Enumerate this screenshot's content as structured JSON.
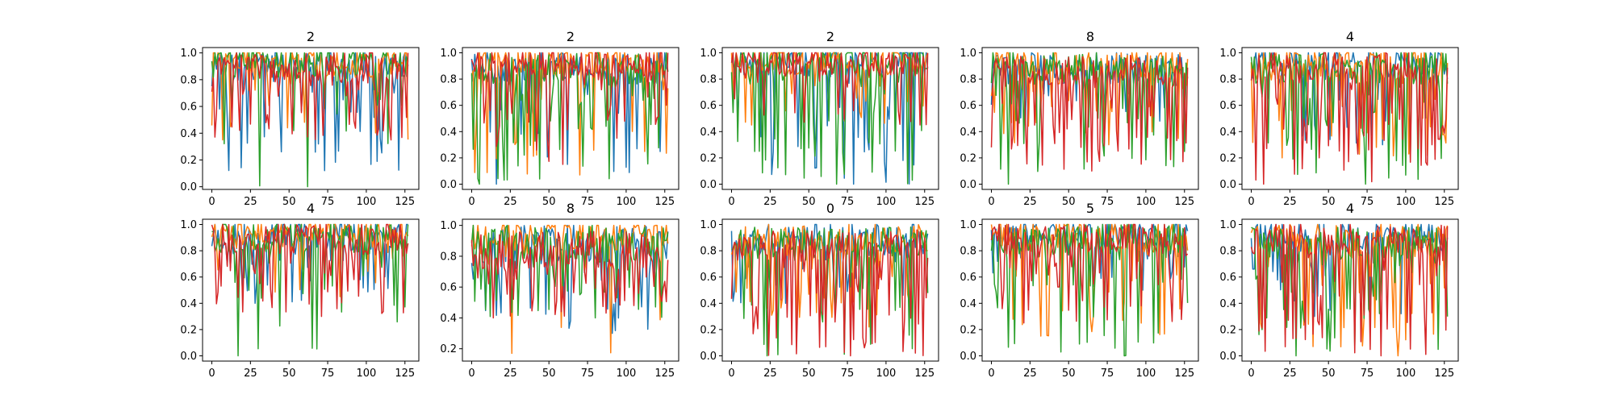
{
  "colors": [
    "#1f77b4",
    "#ff7f0e",
    "#2ca02c",
    "#d62728"
  ],
  "chart_data": [
    {
      "type": "line",
      "title": "2",
      "xlim": [
        -6,
        134
      ],
      "ylim": [
        -0.02,
        1.04
      ],
      "xticks": [
        0,
        25,
        50,
        75,
        100,
        125
      ],
      "yticks": [
        0.0,
        0.2,
        0.4,
        0.6,
        0.8,
        1.0
      ],
      "series": [
        {
          "mean": 0.87,
          "min": 0.12,
          "spread": 0.45,
          "drop": 0.2,
          "seed": 11
        },
        {
          "mean": 0.9,
          "min": 0.35,
          "spread": 0.45,
          "drop": 0.12,
          "seed": 12
        },
        {
          "mean": 0.9,
          "min": 0.0,
          "spread": 0.5,
          "drop": 0.12,
          "seed": 13
        },
        {
          "mean": 0.86,
          "min": 0.35,
          "spread": 0.5,
          "drop": 0.25,
          "seed": 14
        }
      ]
    },
    {
      "type": "line",
      "title": "2",
      "xlim": [
        -6,
        134
      ],
      "ylim": [
        -0.04,
        1.04
      ],
      "xticks": [
        0,
        25,
        50,
        75,
        100,
        125
      ],
      "yticks": [
        0.0,
        0.2,
        0.4,
        0.6,
        0.8,
        1.0
      ],
      "series": [
        {
          "mean": 0.85,
          "min": 0.0,
          "spread": 0.5,
          "drop": 0.18,
          "seed": 21
        },
        {
          "mean": 0.9,
          "min": 0.07,
          "spread": 0.5,
          "drop": 0.15,
          "seed": 22
        },
        {
          "mean": 0.85,
          "min": 0.0,
          "spread": 0.9,
          "drop": 0.3,
          "seed": 23
        },
        {
          "mean": 0.88,
          "min": 0.15,
          "spread": 0.55,
          "drop": 0.25,
          "seed": 24
        }
      ]
    },
    {
      "type": "line",
      "title": "2",
      "xlim": [
        -6,
        134
      ],
      "ylim": [
        -0.04,
        1.04
      ],
      "xticks": [
        0,
        25,
        50,
        75,
        100,
        125
      ],
      "yticks": [
        0.0,
        0.2,
        0.4,
        0.6,
        0.8,
        1.0
      ],
      "series": [
        {
          "mean": 0.9,
          "min": 0.0,
          "spread": 0.45,
          "drop": 0.15,
          "seed": 31
        },
        {
          "mean": 0.92,
          "min": 0.45,
          "spread": 0.4,
          "drop": 0.12,
          "seed": 32
        },
        {
          "mean": 0.9,
          "min": 0.0,
          "spread": 0.9,
          "drop": 0.22,
          "seed": 33
        },
        {
          "mean": 0.9,
          "min": 0.45,
          "spread": 0.45,
          "drop": 0.2,
          "seed": 34
        }
      ]
    },
    {
      "type": "line",
      "title": "8",
      "xlim": [
        -6,
        134
      ],
      "ylim": [
        -0.04,
        1.04
      ],
      "xticks": [
        0,
        25,
        50,
        75,
        100,
        125
      ],
      "yticks": [
        0.0,
        0.2,
        0.4,
        0.6,
        0.8,
        1.0
      ],
      "series": [
        {
          "mean": 0.85,
          "min": 0.45,
          "spread": 0.45,
          "drop": 0.15,
          "seed": 41
        },
        {
          "mean": 0.88,
          "min": 0.3,
          "spread": 0.5,
          "drop": 0.2,
          "seed": 42
        },
        {
          "mean": 0.86,
          "min": 0.0,
          "spread": 0.85,
          "drop": 0.22,
          "seed": 43
        },
        {
          "mean": 0.82,
          "min": 0.1,
          "spread": 0.75,
          "drop": 0.35,
          "seed": 44
        }
      ]
    },
    {
      "type": "line",
      "title": "4",
      "xlim": [
        -6,
        134
      ],
      "ylim": [
        -0.04,
        1.04
      ],
      "xticks": [
        0,
        25,
        50,
        75,
        100,
        125
      ],
      "yticks": [
        0.0,
        0.2,
        0.4,
        0.6,
        0.8,
        1.0
      ],
      "series": [
        {
          "mean": 0.88,
          "min": 0.3,
          "spread": 0.5,
          "drop": 0.15,
          "seed": 51
        },
        {
          "mean": 0.88,
          "min": 0.2,
          "spread": 0.6,
          "drop": 0.2,
          "seed": 52
        },
        {
          "mean": 0.85,
          "min": 0.0,
          "spread": 0.85,
          "drop": 0.2,
          "seed": 53
        },
        {
          "mean": 0.85,
          "min": 0.0,
          "spread": 0.7,
          "drop": 0.32,
          "seed": 54
        }
      ]
    },
    {
      "type": "line",
      "title": "4",
      "xlim": [
        -6,
        134
      ],
      "ylim": [
        -0.04,
        1.04
      ],
      "xticks": [
        0,
        25,
        50,
        75,
        100,
        125
      ],
      "yticks": [
        0.0,
        0.2,
        0.4,
        0.6,
        0.8,
        1.0
      ],
      "series": [
        {
          "mean": 0.9,
          "min": 0.4,
          "spread": 0.45,
          "drop": 0.18,
          "seed": 61
        },
        {
          "mean": 0.9,
          "min": 0.45,
          "spread": 0.45,
          "drop": 0.15,
          "seed": 62
        },
        {
          "mean": 0.87,
          "min": 0.0,
          "spread": 0.8,
          "drop": 0.2,
          "seed": 63
        },
        {
          "mean": 0.85,
          "min": 0.3,
          "spread": 0.6,
          "drop": 0.28,
          "seed": 64
        }
      ]
    },
    {
      "type": "line",
      "title": "8",
      "xlim": [
        -6,
        134
      ],
      "ylim": [
        0.12,
        1.04
      ],
      "xticks": [
        0,
        25,
        50,
        75,
        100,
        125
      ],
      "yticks": [
        0.2,
        0.4,
        0.6,
        0.8,
        1.0
      ],
      "series": [
        {
          "mean": 0.85,
          "min": 0.3,
          "spread": 0.5,
          "drop": 0.2,
          "seed": 71
        },
        {
          "mean": 0.9,
          "min": 0.17,
          "spread": 0.6,
          "drop": 0.15,
          "seed": 72
        },
        {
          "mean": 0.85,
          "min": 0.4,
          "spread": 0.55,
          "drop": 0.2,
          "seed": 73
        },
        {
          "mean": 0.8,
          "min": 0.4,
          "spread": 0.5,
          "drop": 0.35,
          "seed": 74
        }
      ]
    },
    {
      "type": "line",
      "title": "0",
      "xlim": [
        -6,
        134
      ],
      "ylim": [
        -0.04,
        1.04
      ],
      "xticks": [
        0,
        25,
        50,
        75,
        100,
        125
      ],
      "yticks": [
        0.0,
        0.2,
        0.4,
        0.6,
        0.8,
        1.0
      ],
      "series": [
        {
          "mean": 0.85,
          "min": 0.4,
          "spread": 0.5,
          "drop": 0.2,
          "seed": 81
        },
        {
          "mean": 0.85,
          "min": 0.22,
          "spread": 0.6,
          "drop": 0.22,
          "seed": 82
        },
        {
          "mean": 0.82,
          "min": 0.0,
          "spread": 0.85,
          "drop": 0.25,
          "seed": 83
        },
        {
          "mean": 0.8,
          "min": 0.0,
          "spread": 0.75,
          "drop": 0.35,
          "seed": 84
        }
      ]
    },
    {
      "type": "line",
      "title": "5",
      "xlim": [
        -6,
        134
      ],
      "ylim": [
        -0.04,
        1.04
      ],
      "xticks": [
        0,
        25,
        50,
        75,
        100,
        125
      ],
      "yticks": [
        0.0,
        0.2,
        0.4,
        0.6,
        0.8,
        1.0
      ],
      "series": [
        {
          "mean": 0.9,
          "min": 0.5,
          "spread": 0.4,
          "drop": 0.15,
          "seed": 91
        },
        {
          "mean": 0.88,
          "min": 0.15,
          "spread": 0.6,
          "drop": 0.2,
          "seed": 92
        },
        {
          "mean": 0.85,
          "min": 0.0,
          "spread": 0.85,
          "drop": 0.25,
          "seed": 93
        },
        {
          "mean": 0.86,
          "min": 0.25,
          "spread": 0.6,
          "drop": 0.3,
          "seed": 94
        }
      ]
    },
    {
      "type": "line",
      "title": "4",
      "xlim": [
        -6,
        134
      ],
      "ylim": [
        -0.04,
        1.04
      ],
      "xticks": [
        0,
        25,
        50,
        75,
        100,
        125
      ],
      "yticks": [
        0.0,
        0.2,
        0.4,
        0.6,
        0.8,
        1.0
      ],
      "series": [
        {
          "mean": 0.88,
          "min": 0.3,
          "spread": 0.5,
          "drop": 0.18,
          "seed": 101
        },
        {
          "mean": 0.85,
          "min": 0.0,
          "spread": 0.7,
          "drop": 0.22,
          "seed": 102
        },
        {
          "mean": 0.82,
          "min": 0.0,
          "spread": 0.85,
          "drop": 0.25,
          "seed": 103
        },
        {
          "mean": 0.85,
          "min": 0.0,
          "spread": 0.7,
          "drop": 0.3,
          "seed": 104
        }
      ]
    }
  ]
}
